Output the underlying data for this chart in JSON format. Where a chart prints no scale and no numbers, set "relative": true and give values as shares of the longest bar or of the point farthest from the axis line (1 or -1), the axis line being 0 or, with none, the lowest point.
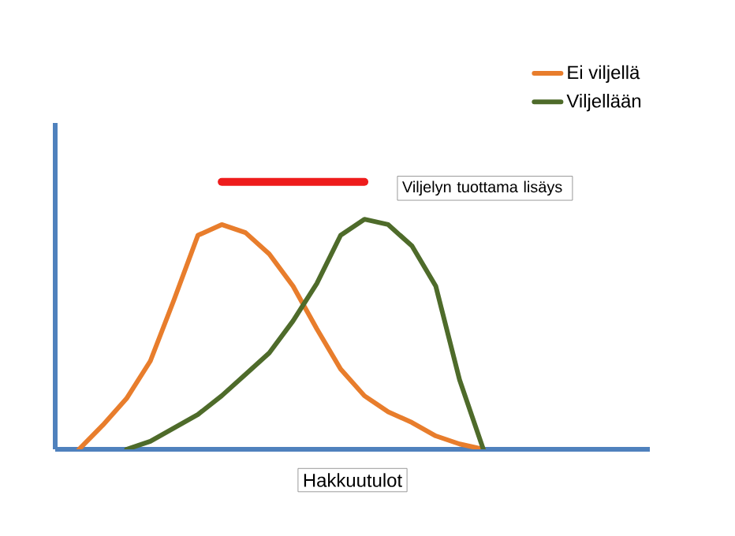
{
  "chart_data": {
    "type": "line",
    "relative": true,
    "xlabel": "Hakkuutulot",
    "legend": "top right",
    "categories": [
      null,
      null,
      null,
      null,
      null,
      null,
      null,
      null,
      null,
      null,
      null,
      null,
      null,
      null,
      null,
      null,
      null,
      null,
      null,
      null,
      null,
      null,
      null,
      null,
      null,
      null
    ],
    "series": [
      {
        "name": "Ei viljellä",
        "color": "#e87d2c",
        "values": [
          null,
          0,
          0.09,
          0.19,
          0.33,
          0.56,
          0.8,
          0.84,
          0.81,
          0.73,
          0.61,
          0.45,
          0.3,
          0.2,
          0.14,
          0.1,
          0.05,
          0.02,
          0,
          null,
          null,
          null,
          null,
          null,
          null,
          null
        ]
      },
      {
        "name": "Viljellään",
        "color": "#4e6b2a",
        "values": [
          null,
          null,
          null,
          0,
          0.03,
          0.08,
          0.13,
          0.2,
          0.28,
          0.36,
          0.48,
          0.62,
          0.8,
          0.86,
          0.84,
          0.76,
          0.61,
          0.26,
          0,
          null,
          null,
          null,
          null,
          null,
          null,
          null
        ]
      },
      {
        "color": "#ee1c1c",
        "values": [
          null,
          null,
          null,
          null,
          null,
          null,
          null,
          1,
          1,
          1,
          1,
          1,
          1,
          1,
          null,
          null,
          null,
          null,
          null,
          null,
          null,
          null,
          null,
          null,
          null,
          null
        ]
      }
    ],
    "annotations": [
      "Viljelyn tuottama lisäys"
    ]
  }
}
